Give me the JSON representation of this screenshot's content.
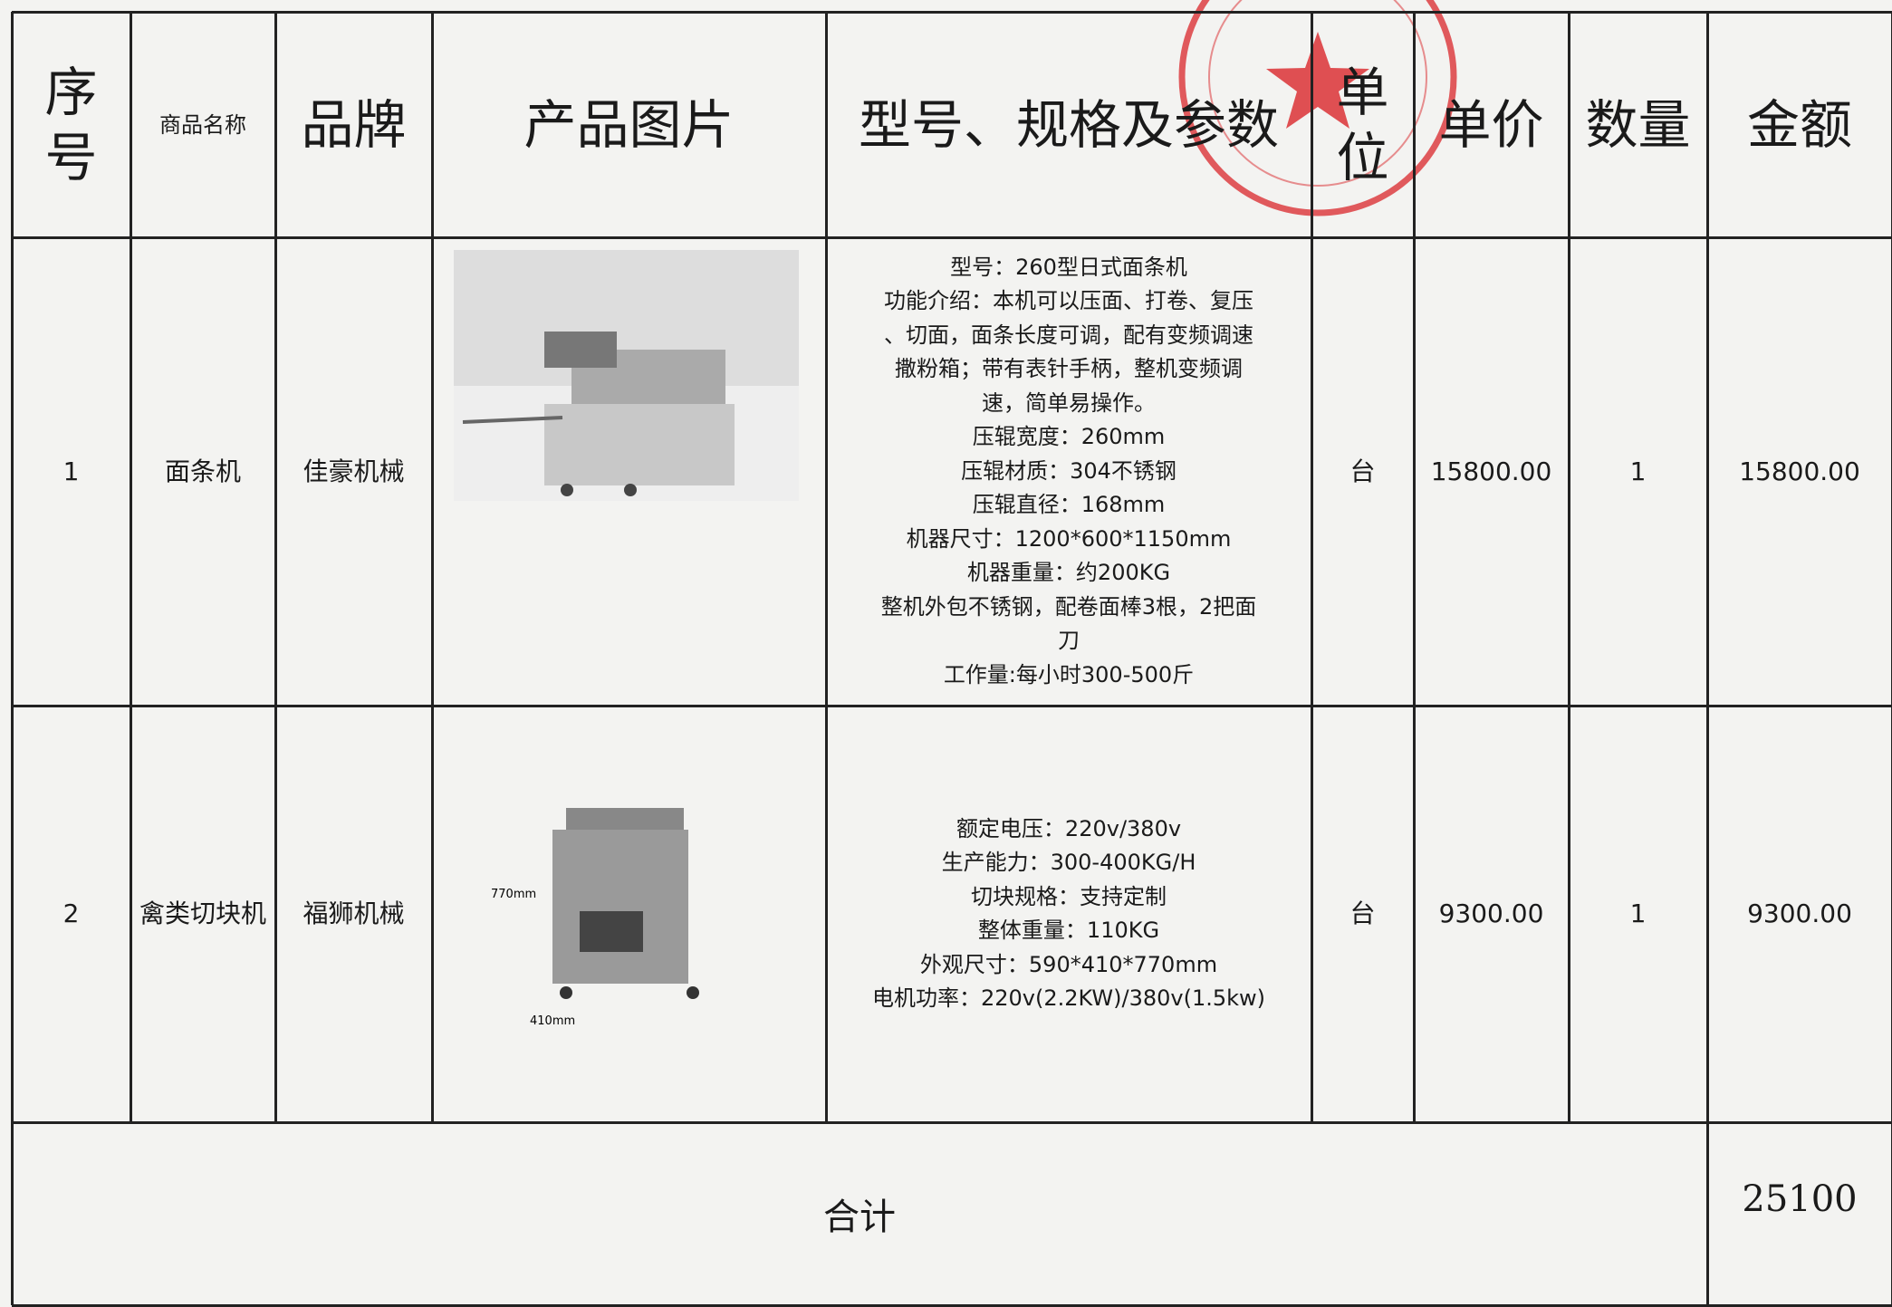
{
  "table": {
    "header": [
      "序号",
      "商品名称",
      "品牌",
      "产品图片",
      "型号、规格及参数",
      "单位",
      "单价",
      "数量",
      "金额"
    ],
    "rows": [
      {
        "index": "1",
        "name": "面条机",
        "brand": "佳豪机械",
        "specs": [
          "型号：260型日式面条机",
          "功能介绍：本机可以压面、打卷、复压",
          "、切面，面条长度可调，配有变频调速",
          "撒粉箱；带有表针手柄，整机变频调",
          "速，简单易操作。",
          "压辊宽度：260mm",
          "压辊材质：304不锈钢",
          "压辊直径：168mm",
          "机器尺寸：1200*600*1150mm",
          "机器重量：约200KG",
          "整机外包不锈钢，配卷面棒3根，2把面",
          "刀",
          "工作量:每小时300-500斤"
        ],
        "unit": "台",
        "price": "15800.00",
        "qty": "1",
        "amount": "15800.00"
      },
      {
        "index": "2",
        "name": "禽类切块机",
        "brand": "福狮机械",
        "specs": [
          "额定电压：220v/380v",
          "生产能力：300-400KG/H",
          "切块规格：支持定制",
          "整体重量：110KG",
          "外观尺寸：590*410*770mm",
          "电机功率：220v(2.2KW)/380v(1.5kw)"
        ],
        "unit": "台",
        "price": "9300.00",
        "qty": "1",
        "amount": "9300.00"
      }
    ],
    "total": {
      "label": "合计",
      "amount": "25100"
    }
  },
  "images": {
    "dim_height": "770mm",
    "dim_width": "410mm"
  }
}
